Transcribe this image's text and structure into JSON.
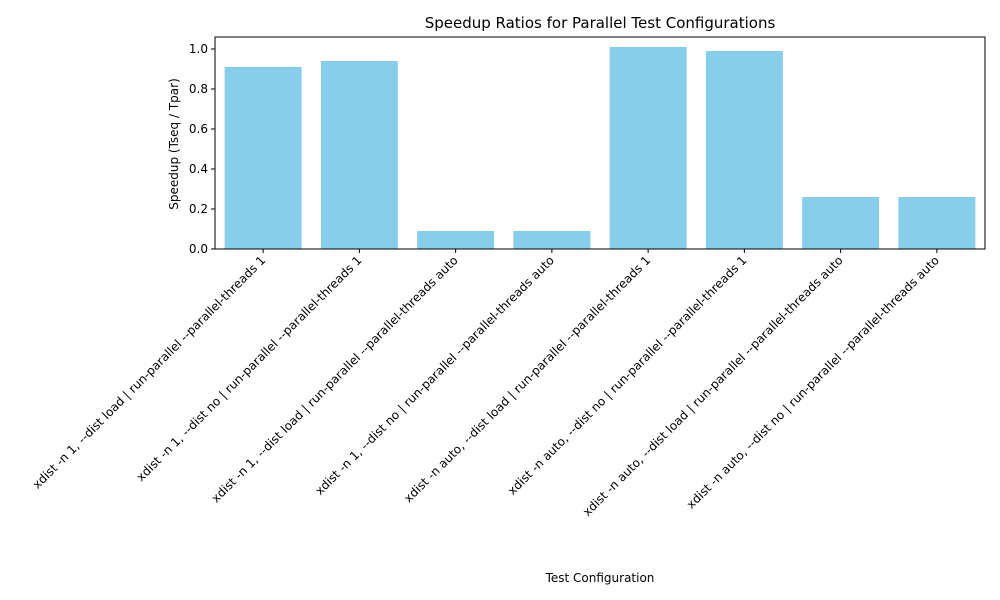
{
  "chart_data": {
    "type": "bar",
    "title": "Speedup Ratios for Parallel Test Configurations",
    "xlabel": "Test Configuration",
    "ylabel": "Speedup (Tseq / Tpar)",
    "ylim": [
      0,
      1.06
    ],
    "yticks": [
      0.0,
      0.2,
      0.4,
      0.6,
      0.8,
      1.0
    ],
    "ytick_labels": [
      "0.0",
      "0.2",
      "0.4",
      "0.6",
      "0.8",
      "1.0"
    ],
    "categories": [
      "xdist -n 1, --dist load | run-parallel --parallel-threads 1",
      "xdist -n 1, --dist no | run-parallel --parallel-threads 1",
      "xdist -n 1, --dist load | run-parallel --parallel-threads auto",
      "xdist -n 1, --dist no | run-parallel --parallel-threads auto",
      "xdist -n auto, --dist load | run-parallel --parallel-threads 1",
      "xdist -n auto, --dist no | run-parallel --parallel-threads 1",
      "xdist -n auto, --dist load | run-parallel --parallel-threads auto",
      "xdist -n auto, --dist no | run-parallel --parallel-threads auto"
    ],
    "values": [
      0.91,
      0.94,
      0.09,
      0.09,
      1.01,
      0.99,
      0.26,
      0.26
    ],
    "bar_color": "#87ceeb",
    "grid": false,
    "legend": "none"
  }
}
